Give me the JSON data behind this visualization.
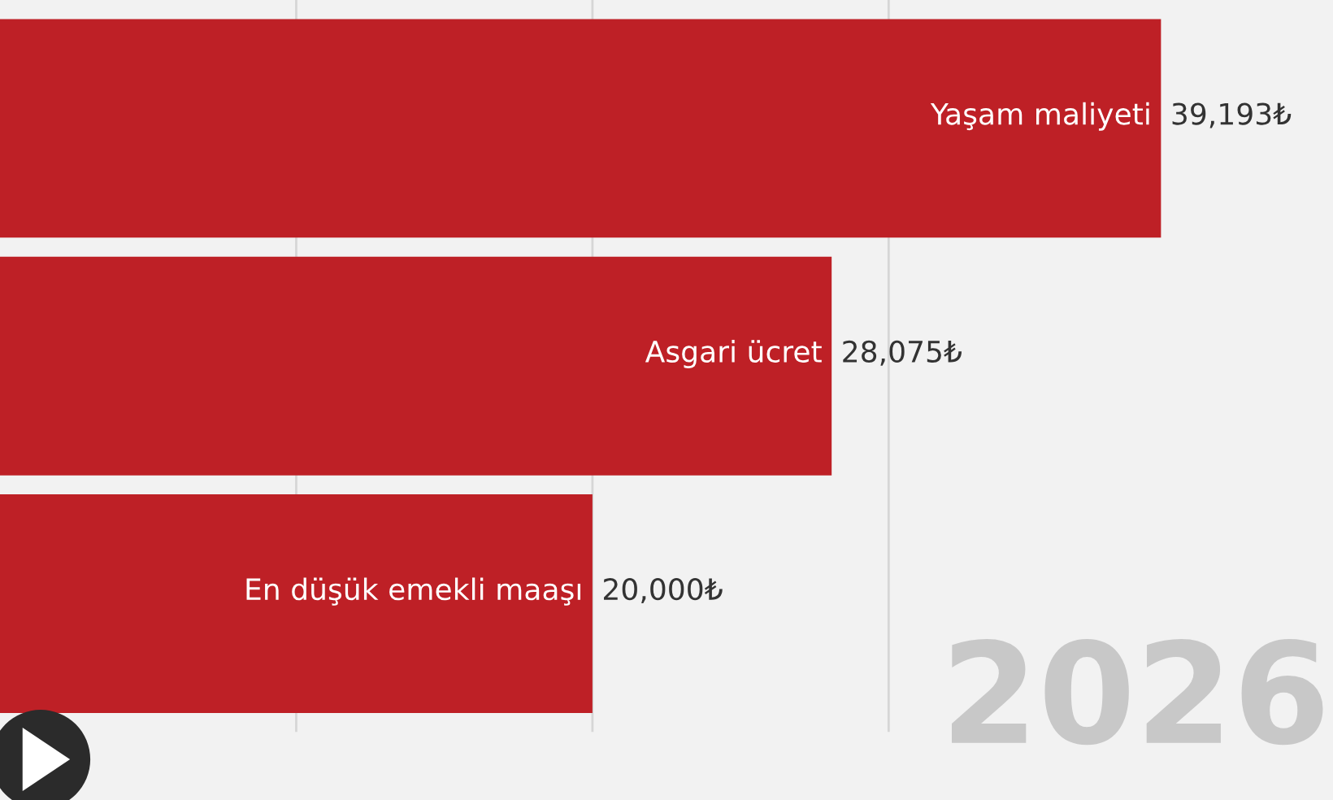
{
  "chart_data": {
    "type": "bar",
    "orientation": "horizontal",
    "categories": [
      "Yaşam maliyeti",
      "Asgari ücret",
      "En düşük emekli maaşı"
    ],
    "values": [
      39193,
      28075,
      20000
    ],
    "color": "#be2026",
    "value_labels": [
      "39,193₺",
      "28,075₺",
      "20,000₺"
    ],
    "xlim": [
      0,
      45000
    ],
    "xticks": [
      {
        "value": 10000,
        "label": null
      },
      {
        "value": 20000,
        "label": null
      },
      {
        "value": 30000,
        "label": null
      }
    ],
    "grid": "x",
    "annotations": [
      "2026"
    ]
  }
}
